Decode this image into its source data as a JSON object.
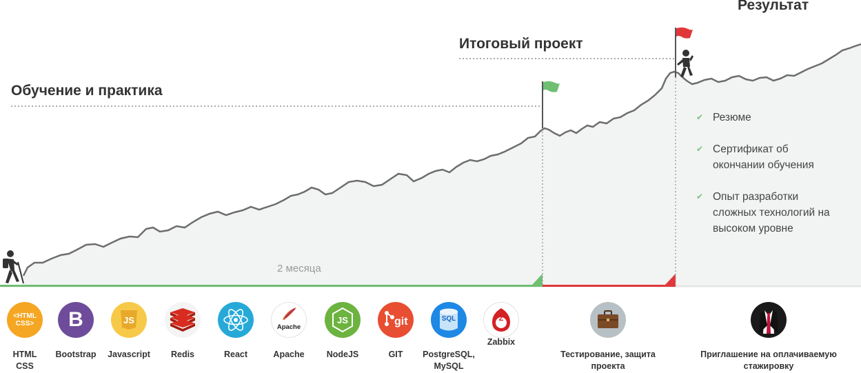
{
  "headings": {
    "learning": "Обучение и практика",
    "final_project": "Итоговый проект",
    "result": "Результат"
  },
  "duration_label": "2 месяца",
  "outcomes": [
    {
      "icon": "check-icon",
      "text": "Резюме"
    },
    {
      "icon": "check-icon",
      "text": "Сертификат об окончании обучения"
    },
    {
      "icon": "check-icon",
      "text": "Опыт разработки сложных технологий на высоком уровне"
    }
  ],
  "technologies": [
    {
      "name": "HTML CSS",
      "icon": "html-css-icon",
      "color": "#f5a623",
      "badge": "<HTML CSS>"
    },
    {
      "name": "Bootstrap",
      "icon": "bootstrap-icon",
      "color": "#6f4c9b",
      "badge": "B"
    },
    {
      "name": "Javascript",
      "icon": "javascript-icon",
      "color": "#f7c948",
      "badge": "JS"
    },
    {
      "name": "Redis",
      "icon": "redis-icon",
      "color": "#d82c20",
      "badge": ""
    },
    {
      "name": "React",
      "icon": "react-icon",
      "color": "#27a9d8",
      "badge": ""
    },
    {
      "name": "Apache",
      "icon": "apache-icon",
      "color": "#ffffff",
      "badge": "Apache"
    },
    {
      "name": "NodeJS",
      "icon": "nodejs-icon",
      "color": "#6cb33f",
      "badge": "JS"
    },
    {
      "name": "GIT",
      "icon": "git-icon",
      "color": "#e84e31",
      "badge": "git"
    },
    {
      "name": "PostgreSQL, MySQL",
      "icon": "sql-icon",
      "color": "#1e88e5",
      "badge": "SQL"
    },
    {
      "name": "Zabbix",
      "icon": "zabbix-icon",
      "color": "#ffffff",
      "badge": "Z"
    }
  ],
  "milestones": [
    {
      "name": "Тестирование, защита проекта",
      "icon": "briefcase-icon",
      "color": "#9aa3a9"
    },
    {
      "name": "Приглашение  на оплачиваемую стажировку",
      "icon": "suit-icon",
      "color": "#1a1a1a"
    }
  ],
  "colors": {
    "learning_phase": "#6fbf73",
    "project_phase": "#e0383a",
    "curve": "#6d6d6d",
    "area_fill": "#f2f3f3",
    "flag_green": "#6fbf73",
    "flag_red": "#e0383a"
  }
}
